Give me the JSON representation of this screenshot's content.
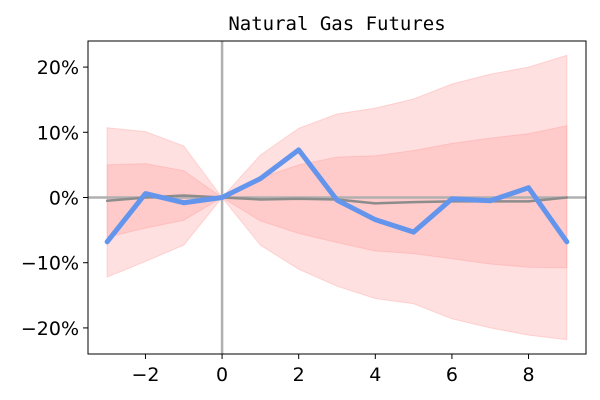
{
  "chart_data": {
    "type": "line",
    "title": "Natural Gas Futures",
    "xlabel": "",
    "ylabel": "",
    "xlim": [
      -3.5,
      9.5
    ],
    "ylim": [
      -0.24,
      0.24
    ],
    "xticks": [
      -2,
      0,
      2,
      4,
      6,
      8
    ],
    "yticks": [
      -0.2,
      -0.1,
      0,
      0.1,
      0.2
    ],
    "xtick_labels": [
      "−2",
      "0",
      "2",
      "4",
      "6",
      "8"
    ],
    "ytick_labels": [
      "−20%",
      "−10%",
      "0%",
      "10%",
      "20%"
    ],
    "grid": false,
    "legend": false,
    "x": [
      -3,
      -2,
      -1,
      0,
      1,
      2,
      3,
      4,
      5,
      6,
      7,
      8,
      9
    ],
    "series": [
      {
        "role": "highlight",
        "color": "#6495ed",
        "values": [
          -0.068,
          0.006,
          -0.008,
          0.0,
          0.029,
          0.073,
          -0.004,
          -0.034,
          -0.053,
          -0.002,
          -0.005,
          0.015,
          -0.068
        ]
      },
      {
        "role": "mean",
        "color": "#8c8c8c",
        "values": [
          -0.005,
          0.0,
          0.003,
          0.0,
          -0.003,
          -0.002,
          -0.003,
          -0.009,
          -0.007,
          -0.006,
          -0.006,
          -0.006,
          0.0
        ]
      }
    ],
    "bands": [
      {
        "role": "outer",
        "color": "#ff9999",
        "upper": [
          0.107,
          0.101,
          0.079,
          0.0,
          0.065,
          0.106,
          0.128,
          0.137,
          0.151,
          0.174,
          0.189,
          0.2,
          0.218
        ],
        "lower": [
          -0.122,
          -0.098,
          -0.073,
          0.0,
          -0.073,
          -0.11,
          -0.136,
          -0.155,
          -0.163,
          -0.186,
          -0.2,
          -0.211,
          -0.218
        ]
      },
      {
        "role": "inner",
        "color": "#ff9999",
        "upper": [
          0.05,
          0.052,
          0.041,
          0.0,
          0.03,
          0.05,
          0.062,
          0.064,
          0.072,
          0.083,
          0.091,
          0.098,
          0.11
        ],
        "lower": [
          -0.061,
          -0.047,
          -0.035,
          0.0,
          -0.036,
          -0.055,
          -0.069,
          -0.082,
          -0.086,
          -0.094,
          -0.102,
          -0.107,
          -0.108
        ]
      }
    ],
    "reference_lines": {
      "vertical_x": 0,
      "horizontal_y": 0,
      "color": "#b0b0b0"
    }
  }
}
